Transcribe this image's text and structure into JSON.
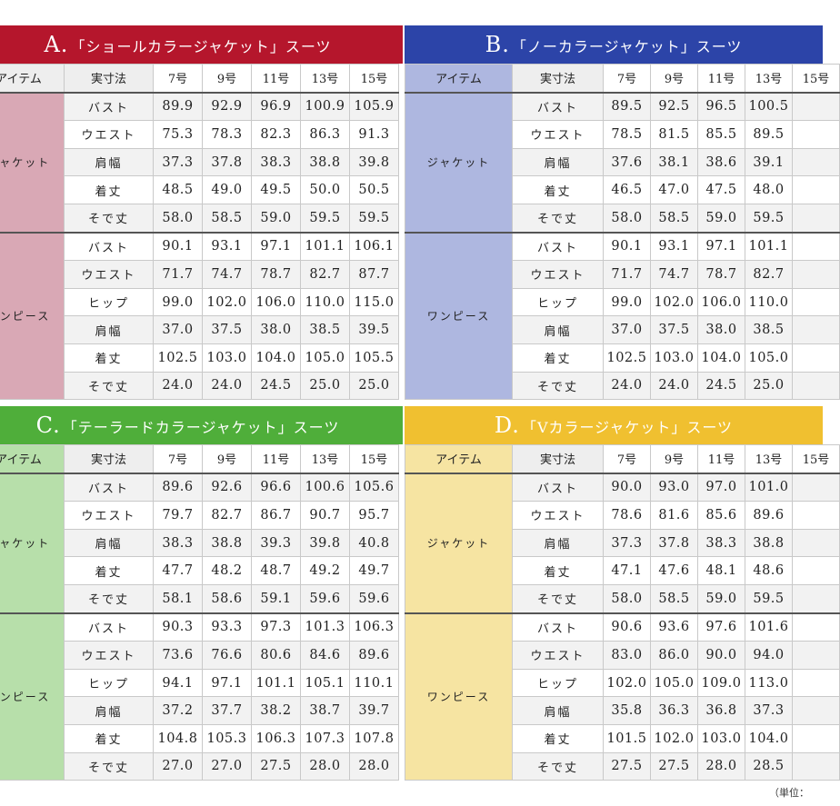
{
  "sizes": [
    "7号",
    "9号",
    "11号",
    "13号",
    "15号"
  ],
  "col_header_item": "アイテム",
  "col_header_measure": "実寸法",
  "unit_note": "（単位：",
  "panels": [
    {
      "id": "a",
      "letter": "A.",
      "title": "「ショールカラージャケット」スーツ",
      "colors": {
        "header": "#b5162c",
        "item_bg": "#d9a8b5",
        "item_header": "#eeeeee"
      },
      "visible_sizes": 5,
      "groups": [
        {
          "name": "ジャケット",
          "rows": [
            {
              "label": "バスト",
              "values": [
                "89.9",
                "92.9",
                "96.9",
                "100.9",
                "105.9"
              ]
            },
            {
              "label": "ウエスト",
              "values": [
                "75.3",
                "78.3",
                "82.3",
                "86.3",
                "91.3"
              ]
            },
            {
              "label": "肩幅",
              "values": [
                "37.3",
                "37.8",
                "38.3",
                "38.8",
                "39.8"
              ]
            },
            {
              "label": "着丈",
              "values": [
                "48.5",
                "49.0",
                "49.5",
                "50.0",
                "50.5"
              ]
            },
            {
              "label": "そで丈",
              "values": [
                "58.0",
                "58.5",
                "59.0",
                "59.5",
                "59.5"
              ]
            }
          ]
        },
        {
          "name": "ワンピース",
          "rows": [
            {
              "label": "バスト",
              "values": [
                "90.1",
                "93.1",
                "97.1",
                "101.1",
                "106.1"
              ]
            },
            {
              "label": "ウエスト",
              "values": [
                "71.7",
                "74.7",
                "78.7",
                "82.7",
                "87.7"
              ]
            },
            {
              "label": "ヒップ",
              "values": [
                "99.0",
                "102.0",
                "106.0",
                "110.0",
                "115.0"
              ]
            },
            {
              "label": "肩幅",
              "values": [
                "37.0",
                "37.5",
                "38.0",
                "38.5",
                "39.5"
              ]
            },
            {
              "label": "着丈",
              "values": [
                "102.5",
                "103.0",
                "104.0",
                "105.0",
                "105.5"
              ]
            },
            {
              "label": "そで丈",
              "values": [
                "24.0",
                "24.0",
                "24.5",
                "25.0",
                "25.0"
              ]
            }
          ]
        }
      ]
    },
    {
      "id": "b",
      "letter": "B.",
      "title": "「ノーカラージャケット」スーツ",
      "colors": {
        "header": "#2c44a8",
        "item_bg": "#aeb7e0",
        "item_header": "#aeb7e0"
      },
      "visible_sizes": 4,
      "groups": [
        {
          "name": "ジャケット",
          "rows": [
            {
              "label": "バスト",
              "values": [
                "89.5",
                "92.5",
                "96.5",
                "100.5"
              ]
            },
            {
              "label": "ウエスト",
              "values": [
                "78.5",
                "81.5",
                "85.5",
                "89.5"
              ]
            },
            {
              "label": "肩幅",
              "values": [
                "37.6",
                "38.1",
                "38.6",
                "39.1"
              ]
            },
            {
              "label": "着丈",
              "values": [
                "46.5",
                "47.0",
                "47.5",
                "48.0"
              ]
            },
            {
              "label": "そで丈",
              "values": [
                "58.0",
                "58.5",
                "59.0",
                "59.5"
              ]
            }
          ]
        },
        {
          "name": "ワンピース",
          "rows": [
            {
              "label": "バスト",
              "values": [
                "90.1",
                "93.1",
                "97.1",
                "101.1"
              ]
            },
            {
              "label": "ウエスト",
              "values": [
                "71.7",
                "74.7",
                "78.7",
                "82.7"
              ]
            },
            {
              "label": "ヒップ",
              "values": [
                "99.0",
                "102.0",
                "106.0",
                "110.0"
              ]
            },
            {
              "label": "肩幅",
              "values": [
                "37.0",
                "37.5",
                "38.0",
                "38.5"
              ]
            },
            {
              "label": "着丈",
              "values": [
                "102.5",
                "103.0",
                "104.0",
                "105.0"
              ]
            },
            {
              "label": "そで丈",
              "values": [
                "24.0",
                "24.0",
                "24.5",
                "25.0"
              ]
            }
          ]
        }
      ]
    },
    {
      "id": "c",
      "letter": "C.",
      "title": "「テーラードカラージャケット」スーツ",
      "colors": {
        "header": "#4fae3a",
        "item_bg": "#b7dfaa",
        "item_header": "#b7dfaa"
      },
      "visible_sizes": 5,
      "groups": [
        {
          "name": "ジャケット",
          "rows": [
            {
              "label": "バスト",
              "values": [
                "89.6",
                "92.6",
                "96.6",
                "100.6",
                "105.6"
              ]
            },
            {
              "label": "ウエスト",
              "values": [
                "79.7",
                "82.7",
                "86.7",
                "90.7",
                "95.7"
              ]
            },
            {
              "label": "肩幅",
              "values": [
                "38.3",
                "38.8",
                "39.3",
                "39.8",
                "40.8"
              ]
            },
            {
              "label": "着丈",
              "values": [
                "47.7",
                "48.2",
                "48.7",
                "49.2",
                "49.7"
              ]
            },
            {
              "label": "そで丈",
              "values": [
                "58.1",
                "58.6",
                "59.1",
                "59.6",
                "59.6"
              ]
            }
          ]
        },
        {
          "name": "ワンピース",
          "rows": [
            {
              "label": "バスト",
              "values": [
                "90.3",
                "93.3",
                "97.3",
                "101.3",
                "106.3"
              ]
            },
            {
              "label": "ウエスト",
              "values": [
                "73.6",
                "76.6",
                "80.6",
                "84.6",
                "89.6"
              ]
            },
            {
              "label": "ヒップ",
              "values": [
                "94.1",
                "97.1",
                "101.1",
                "105.1",
                "110.1"
              ]
            },
            {
              "label": "肩幅",
              "values": [
                "37.2",
                "37.7",
                "38.2",
                "38.7",
                "39.7"
              ]
            },
            {
              "label": "着丈",
              "values": [
                "104.8",
                "105.3",
                "106.3",
                "107.3",
                "107.8"
              ]
            },
            {
              "label": "そで丈",
              "values": [
                "27.0",
                "27.0",
                "27.5",
                "28.0",
                "28.0"
              ]
            }
          ]
        }
      ]
    },
    {
      "id": "d",
      "letter": "D.",
      "title": "「Vカラージャケット」スーツ",
      "colors": {
        "header": "#f0c030",
        "item_bg": "#f6e4a2",
        "item_header": "#f6e4a2"
      },
      "visible_sizes": 4,
      "groups": [
        {
          "name": "ジャケット",
          "rows": [
            {
              "label": "バスト",
              "values": [
                "90.0",
                "93.0",
                "97.0",
                "101.0"
              ]
            },
            {
              "label": "ウエスト",
              "values": [
                "78.6",
                "81.6",
                "85.6",
                "89.6"
              ]
            },
            {
              "label": "肩幅",
              "values": [
                "37.3",
                "37.8",
                "38.3",
                "38.8"
              ]
            },
            {
              "label": "着丈",
              "values": [
                "47.1",
                "47.6",
                "48.1",
                "48.6"
              ]
            },
            {
              "label": "そで丈",
              "values": [
                "58.0",
                "58.5",
                "59.0",
                "59.5"
              ]
            }
          ]
        },
        {
          "name": "ワンピース",
          "rows": [
            {
              "label": "バスト",
              "values": [
                "90.6",
                "93.6",
                "97.6",
                "101.6"
              ]
            },
            {
              "label": "ウエスト",
              "values": [
                "83.0",
                "86.0",
                "90.0",
                "94.0"
              ]
            },
            {
              "label": "ヒップ",
              "values": [
                "102.0",
                "105.0",
                "109.0",
                "113.0"
              ]
            },
            {
              "label": "肩幅",
              "values": [
                "35.8",
                "36.3",
                "36.8",
                "37.3"
              ]
            },
            {
              "label": "着丈",
              "values": [
                "101.5",
                "102.0",
                "103.0",
                "104.0"
              ]
            },
            {
              "label": "そで丈",
              "values": [
                "27.5",
                "27.5",
                "28.0",
                "28.5"
              ]
            }
          ]
        }
      ]
    }
  ]
}
